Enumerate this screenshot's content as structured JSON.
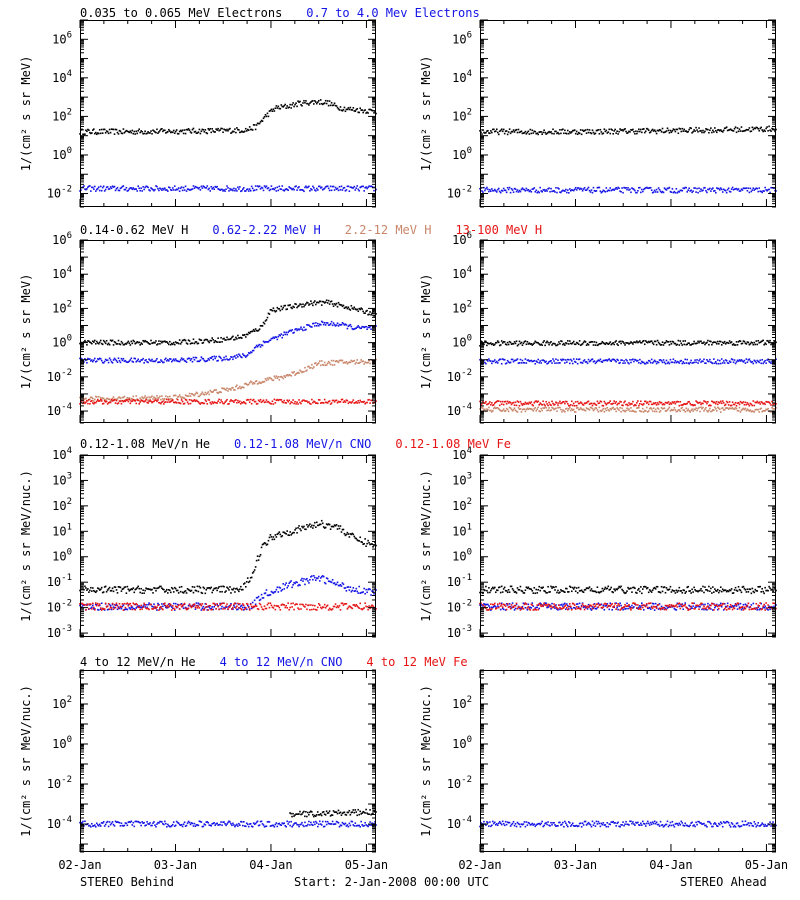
{
  "colors": {
    "black": "#000000",
    "blue": "#1414e6",
    "tan": "#c8866a",
    "red": "#e61414"
  },
  "footer": {
    "left": "STEREO Behind",
    "center": "Start:  2-Jan-2008 00:00 UTC",
    "right": "STEREO Ahead"
  },
  "chart_data": [
    {
      "id": "electrons",
      "type": "scatter",
      "ylabel": "1/(cm² s sr MeV)",
      "ylog": true,
      "ylim": [
        0.002,
        10000000
      ],
      "yticks": [
        {
          "value": 0.01,
          "base": "10",
          "exp": "-2"
        },
        {
          "value": 1,
          "base": "10",
          "exp": "0"
        },
        {
          "value": 100,
          "base": "10",
          "exp": "2"
        },
        {
          "value": 10000,
          "base": "10",
          "exp": "4"
        },
        {
          "value": 1000000,
          "base": "10",
          "exp": "6"
        }
      ],
      "legend": [
        {
          "text": "0.035 to 0.065 MeV Electrons",
          "color": "#000000"
        },
        {
          "text": "0.7 to 4.0 Mev Electrons",
          "color": "#1414e6"
        }
      ],
      "behind": [
        {
          "color": "#000000",
          "points": [
            [
              0,
              16
            ],
            [
              0.5,
              16
            ],
            [
              1,
              17
            ],
            [
              1.5,
              18
            ],
            [
              1.75,
              20
            ],
            [
              1.85,
              30
            ],
            [
              1.95,
              110
            ],
            [
              2.05,
              270
            ],
            [
              2.2,
              350
            ],
            [
              2.3,
              480
            ],
            [
              2.5,
              580
            ],
            [
              2.6,
              500
            ],
            [
              2.7,
              300
            ],
            [
              2.8,
              240
            ],
            [
              3,
              200
            ],
            [
              3.1,
              180
            ]
          ]
        },
        {
          "color": "#1414e6",
          "points": [
            [
              0,
              0.018
            ],
            [
              3.1,
              0.018
            ]
          ]
        }
      ],
      "ahead": [
        {
          "color": "#000000",
          "points": [
            [
              0,
              16
            ],
            [
              1,
              16
            ],
            [
              2,
              18
            ],
            [
              3,
              22
            ],
            [
              3.1,
              23
            ]
          ]
        },
        {
          "color": "#1414e6",
          "points": [
            [
              0,
              0.015
            ],
            [
              3.1,
              0.015
            ]
          ]
        }
      ]
    },
    {
      "id": "protons",
      "type": "scatter",
      "ylabel": "1/(cm² s sr MeV)",
      "ylog": true,
      "ylim": [
        2e-05,
        1000000
      ],
      "yticks": [
        {
          "value": 0.0001,
          "base": "10",
          "exp": "-4"
        },
        {
          "value": 0.01,
          "base": "10",
          "exp": "-2"
        },
        {
          "value": 1,
          "base": "10",
          "exp": "0"
        },
        {
          "value": 100,
          "base": "10",
          "exp": "2"
        },
        {
          "value": 10000,
          "base": "10",
          "exp": "4"
        },
        {
          "value": 1000000,
          "base": "10",
          "exp": "6"
        }
      ],
      "legend": [
        {
          "text": "0.14-0.62 MeV H",
          "color": "#000000"
        },
        {
          "text": "0.62-2.22 MeV H",
          "color": "#1414e6"
        },
        {
          "text": "2.2-12 MeV H",
          "color": "#c8866a"
        },
        {
          "text": "13-100 MeV H",
          "color": "#e61414"
        }
      ],
      "behind": [
        {
          "color": "#000000",
          "points": [
            [
              0,
              1
            ],
            [
              1,
              1
            ],
            [
              1.5,
              1.5
            ],
            [
              1.7,
              2.2
            ],
            [
              1.8,
              4
            ],
            [
              1.9,
              8
            ],
            [
              2,
              80
            ],
            [
              2.2,
              120
            ],
            [
              2.4,
              200
            ],
            [
              2.6,
              220
            ],
            [
              2.8,
              120
            ],
            [
              3.1,
              45
            ]
          ]
        },
        {
          "color": "#1414e6",
          "points": [
            [
              0,
              0.09
            ],
            [
              1,
              0.09
            ],
            [
              1.5,
              0.12
            ],
            [
              1.75,
              0.18
            ],
            [
              1.85,
              0.6
            ],
            [
              2,
              1.5
            ],
            [
              2.2,
              4
            ],
            [
              2.5,
              13
            ],
            [
              2.7,
              12
            ],
            [
              2.9,
              7
            ],
            [
              3.1,
              7
            ]
          ]
        },
        {
          "color": "#c8866a",
          "points": [
            [
              0,
              0.0005
            ],
            [
              1,
              0.0006
            ],
            [
              1.6,
              0.002
            ],
            [
              1.9,
              0.006
            ],
            [
              2.1,
              0.009
            ],
            [
              2.3,
              0.02
            ],
            [
              2.5,
              0.06
            ],
            [
              2.7,
              0.07
            ],
            [
              3.1,
              0.08
            ]
          ]
        },
        {
          "color": "#e61414",
          "points": [
            [
              0,
              0.00035
            ],
            [
              3.1,
              0.00035
            ]
          ]
        }
      ],
      "ahead": [
        {
          "color": "#000000",
          "points": [
            [
              0,
              0.9
            ],
            [
              3.1,
              1
            ]
          ]
        },
        {
          "color": "#1414e6",
          "points": [
            [
              0,
              0.08
            ],
            [
              3.1,
              0.08
            ]
          ]
        },
        {
          "color": "#c8866a",
          "points": [
            [
              0,
              0.00012
            ],
            [
              3.1,
              0.00012
            ]
          ]
        },
        {
          "color": "#e61414",
          "points": [
            [
              0,
              0.00028
            ],
            [
              3.1,
              0.00028
            ]
          ]
        }
      ]
    },
    {
      "id": "helium-cno-fe-low",
      "type": "scatter",
      "ylabel": "1/(cm² s sr MeV/nuc.)",
      "ylog": true,
      "ylim": [
        0.0007,
        10000
      ],
      "yticks": [
        {
          "value": 0.001,
          "base": "10",
          "exp": "-3"
        },
        {
          "value": 0.01,
          "base": "10",
          "exp": "-2"
        },
        {
          "value": 0.1,
          "base": "10",
          "exp": "-1"
        },
        {
          "value": 1,
          "base": "10",
          "exp": "0"
        },
        {
          "value": 10,
          "base": "10",
          "exp": "1"
        },
        {
          "value": 100,
          "base": "10",
          "exp": "2"
        },
        {
          "value": 1000,
          "base": "10",
          "exp": "3"
        },
        {
          "value": 10000,
          "base": "10",
          "exp": "4"
        }
      ],
      "legend": [
        {
          "text": "0.12-1.08 MeV/n He",
          "color": "#000000"
        },
        {
          "text": "0.12-1.08 MeV/n CNO",
          "color": "#1414e6"
        },
        {
          "text": "0.12-1.08 MeV Fe",
          "color": "#e61414"
        }
      ],
      "behind": [
        {
          "color": "#000000",
          "points": [
            [
              0,
              0.05
            ],
            [
              1.7,
              0.05
            ],
            [
              1.8,
              0.2
            ],
            [
              1.9,
              2
            ],
            [
              2,
              6
            ],
            [
              2.1,
              8
            ],
            [
              2.3,
              12
            ],
            [
              2.5,
              20
            ],
            [
              2.7,
              15
            ],
            [
              2.85,
              6
            ],
            [
              3,
              3.5
            ],
            [
              3.1,
              3
            ]
          ]
        },
        {
          "color": "#1414e6",
          "points": [
            [
              0,
              0.011
            ],
            [
              1.8,
              0.011
            ],
            [
              1.9,
              0.03
            ],
            [
              2.2,
              0.08
            ],
            [
              2.5,
              0.15
            ],
            [
              2.8,
              0.06
            ],
            [
              3.1,
              0.04
            ]
          ]
        },
        {
          "color": "#e61414",
          "points": [
            [
              0,
              0.011
            ],
            [
              3.1,
              0.011
            ]
          ]
        }
      ],
      "ahead": [
        {
          "color": "#000000",
          "points": [
            [
              0,
              0.05
            ],
            [
              3.1,
              0.05
            ]
          ]
        },
        {
          "color": "#1414e6",
          "points": [
            [
              0,
              0.011
            ],
            [
              3.1,
              0.011
            ]
          ]
        },
        {
          "color": "#e61414",
          "points": [
            [
              0,
              0.011
            ],
            [
              3.1,
              0.011
            ]
          ]
        }
      ]
    },
    {
      "id": "helium-cno-fe-high",
      "type": "scatter",
      "ylabel": "1/(cm² s sr MeV/nuc.)",
      "ylog": true,
      "ylim": [
        4e-06,
        5000
      ],
      "yticks": [
        {
          "value": 0.0001,
          "base": "10",
          "exp": "-4"
        },
        {
          "value": 0.01,
          "base": "10",
          "exp": "-2"
        },
        {
          "value": 1,
          "base": "10",
          "exp": "0"
        },
        {
          "value": 100,
          "base": "10",
          "exp": "2"
        }
      ],
      "legend": [
        {
          "text": "4 to 12 MeV/n He",
          "color": "#000000"
        },
        {
          "text": "4 to 12 MeV/n CNO",
          "color": "#1414e6"
        },
        {
          "text": "4 to 12 MeV Fe",
          "color": "#e61414"
        }
      ],
      "behind": [
        {
          "color": "#000000",
          "points": [
            [
              2.2,
              0.0003
            ],
            [
              3.1,
              0.0004
            ]
          ]
        },
        {
          "color": "#1414e6",
          "points": [
            [
              0,
              0.0001
            ],
            [
              3.1,
              0.0001
            ]
          ]
        }
      ],
      "ahead": [
        {
          "color": "#1414e6",
          "points": [
            [
              0,
              0.0001
            ],
            [
              3.1,
              0.0001
            ]
          ]
        }
      ]
    }
  ],
  "x_axis": {
    "label": "",
    "xlim": [
      0,
      3.1
    ],
    "ticks": [
      {
        "value": 0,
        "label": "02-Jan"
      },
      {
        "value": 1,
        "label": "03-Jan"
      },
      {
        "value": 2,
        "label": "04-Jan"
      },
      {
        "value": 3,
        "label": "05-Jan"
      }
    ]
  }
}
